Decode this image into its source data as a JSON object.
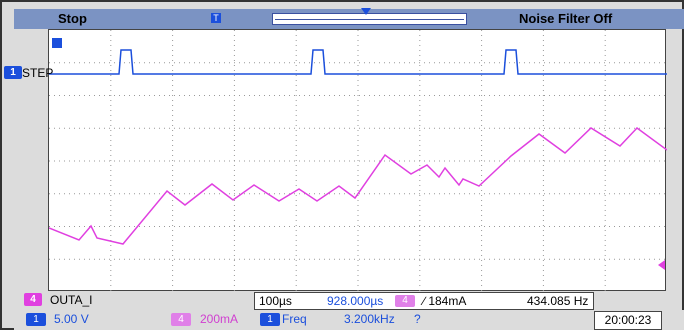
{
  "top_bar": {
    "status": "Stop",
    "noise_filter": "Noise Filter Off"
  },
  "channels": {
    "ch1": {
      "id": "1",
      "label": "STEP",
      "scale": "5.00 V",
      "color": "#1b4fdc"
    },
    "ch4": {
      "id": "4",
      "label": "OUTA_I",
      "scale": "200mA",
      "color": "#e040e0"
    }
  },
  "readouts": {
    "timebase": "100µs",
    "delay": "928.000µs",
    "trigger": "∕ 184mA",
    "frequency_readout": "434.085 Hz",
    "freq_label": "Freq",
    "freq_value": "3.200kHz",
    "freq_flag": "?",
    "clock": "20:00:23"
  },
  "icons": {
    "trigger_marker": "T",
    "ref_marker": "ref-marker-icon"
  }
}
